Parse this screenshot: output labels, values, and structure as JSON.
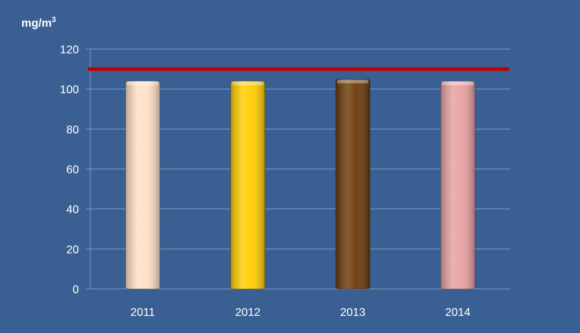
{
  "chart_data": {
    "type": "bar",
    "title": "",
    "ylabel": "mg/m",
    "ylabel_superscript": "3",
    "xlabel": "",
    "categories": [
      "2011",
      "2012",
      "2013",
      "2014"
    ],
    "values": [
      104,
      104,
      105,
      104
    ],
    "bar_colors": [
      "#ffe0c4",
      "#ffcc00",
      "#6b3a08",
      "#e8a0a0"
    ],
    "ylim": [
      0,
      120
    ],
    "yticks": [
      0,
      20,
      40,
      60,
      80,
      100,
      120
    ],
    "grid": true,
    "reference_line": {
      "value": 110,
      "color": "#c00000"
    },
    "background_color": "#3a6093"
  }
}
